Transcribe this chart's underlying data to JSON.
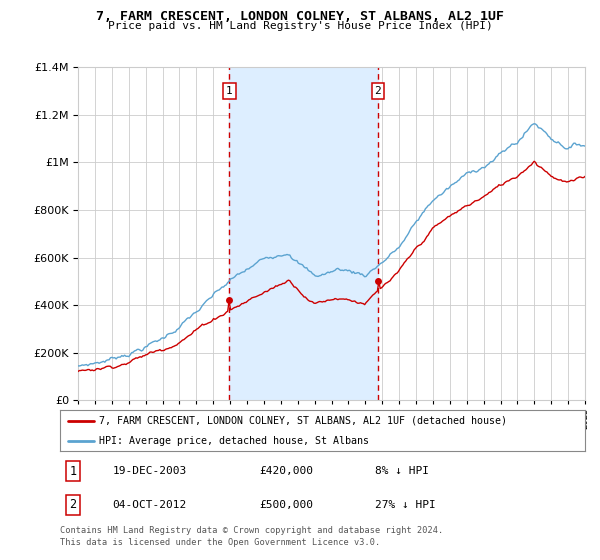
{
  "title": "7, FARM CRESCENT, LONDON COLNEY, ST ALBANS, AL2 1UF",
  "subtitle": "Price paid vs. HM Land Registry's House Price Index (HPI)",
  "legend_line1": "7, FARM CRESCENT, LONDON COLNEY, ST ALBANS, AL2 1UF (detached house)",
  "legend_line2": "HPI: Average price, detached house, St Albans",
  "footnote1": "Contains HM Land Registry data © Crown copyright and database right 2024.",
  "footnote2": "This data is licensed under the Open Government Licence v3.0.",
  "transaction1_date": "19-DEC-2003",
  "transaction1_price": "£420,000",
  "transaction1_hpi": "8% ↓ HPI",
  "transaction2_date": "04-OCT-2012",
  "transaction2_price": "£500,000",
  "transaction2_hpi": "27% ↓ HPI",
  "ylim": [
    0,
    1400000
  ],
  "yticks": [
    0,
    200000,
    400000,
    600000,
    800000,
    1000000,
    1200000,
    1400000
  ],
  "hpi_color": "#5ba3d0",
  "price_color": "#cc0000",
  "shade_color": "#ddeeff",
  "transaction_color": "#cc0000",
  "background_color": "#ffffff",
  "grid_color": "#cccccc",
  "t1_year": 2003.958,
  "t2_year": 2012.75,
  "t1_price": 420000,
  "t2_price": 500000
}
